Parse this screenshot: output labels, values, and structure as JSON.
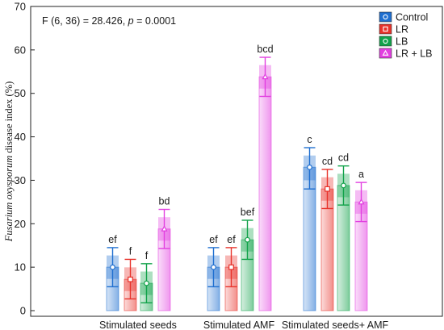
{
  "chart_data": {
    "type": "bar",
    "categories": [
      "Stimulated seeds",
      "Stimulated AMF",
      "Stimulated seeds+ AMF"
    ],
    "ylabel_italic": "Fusarium oxysporum",
    "ylabel_rest": "disease index (%)",
    "ylim": [
      0,
      70
    ],
    "yticks": [
      0,
      10,
      20,
      30,
      40,
      50,
      60,
      70
    ],
    "grid": false,
    "legend_position": "top-right",
    "stat_prefix": "F (6, 36) = 28.426, ",
    "stat_p": "p",
    "stat_suffix": " = 0.0001",
    "series": [
      {
        "name": "Control",
        "color": "#1f6fd0",
        "marker": "circle",
        "values": [
          10.0,
          10.0,
          33.0
        ],
        "err_low": [
          5.5,
          5.5,
          28.0
        ],
        "err_high": [
          14.5,
          14.5,
          37.5
        ],
        "labels": [
          "ef",
          "ef",
          "c"
        ]
      },
      {
        "name": "LR",
        "color": "#e8322a",
        "marker": "square",
        "values": [
          7.2,
          10.0,
          28.0
        ],
        "err_low": [
          2.7,
          5.5,
          23.5
        ],
        "err_high": [
          11.8,
          14.5,
          32.5
        ],
        "labels": [
          "f",
          "ef",
          "cd"
        ]
      },
      {
        "name": "LB",
        "color": "#12a24a",
        "marker": "circle",
        "values": [
          6.3,
          16.3,
          28.8
        ],
        "err_low": [
          1.8,
          11.8,
          24.3
        ],
        "err_high": [
          10.8,
          20.8,
          33.3
        ],
        "labels": [
          "f",
          "bef",
          "cd"
        ]
      },
      {
        "name": "LR + LB",
        "color": "#e23fe0",
        "marker": "triangle",
        "values": [
          18.8,
          53.8,
          25.0
        ],
        "err_low": [
          14.3,
          49.3,
          20.5
        ],
        "err_high": [
          23.3,
          58.3,
          29.5
        ],
        "labels": [
          "bd",
          "bcd",
          "a"
        ]
      }
    ]
  }
}
